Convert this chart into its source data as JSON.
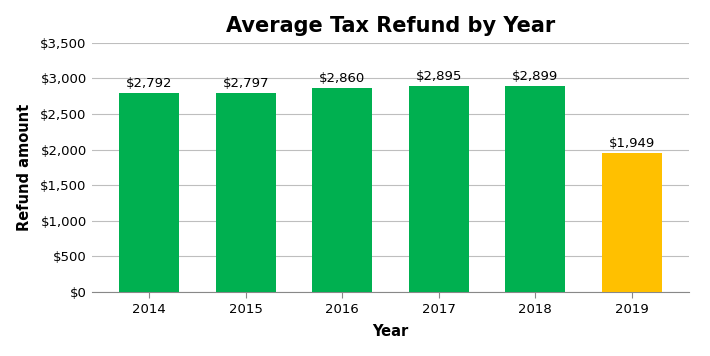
{
  "title": "Average Tax Refund by Year",
  "xlabel": "Year",
  "ylabel": "Refund amount",
  "categories": [
    "2014",
    "2015",
    "2016",
    "2017",
    "2018",
    "2019"
  ],
  "values": [
    2792,
    2797,
    2860,
    2895,
    2899,
    1949
  ],
  "bar_colors": [
    "#00b050",
    "#00b050",
    "#00b050",
    "#00b050",
    "#00b050",
    "#ffc000"
  ],
  "labels": [
    "$2,792",
    "$2,797",
    "$2,860",
    "$2,895",
    "$2,899",
    "$1,949"
  ],
  "ylim": [
    0,
    3500
  ],
  "yticks": [
    0,
    500,
    1000,
    1500,
    2000,
    2500,
    3000,
    3500
  ],
  "ytick_labels": [
    "$0",
    "$500",
    "$1,000",
    "$1,500",
    "$2,000",
    "$2,500",
    "$3,000",
    "$3,500"
  ],
  "background_color": "#ffffff",
  "grid_color": "#bebebe",
  "title_fontsize": 15,
  "label_fontsize": 10.5,
  "tick_fontsize": 9.5,
  "bar_label_fontsize": 9.5,
  "bar_width": 0.62
}
